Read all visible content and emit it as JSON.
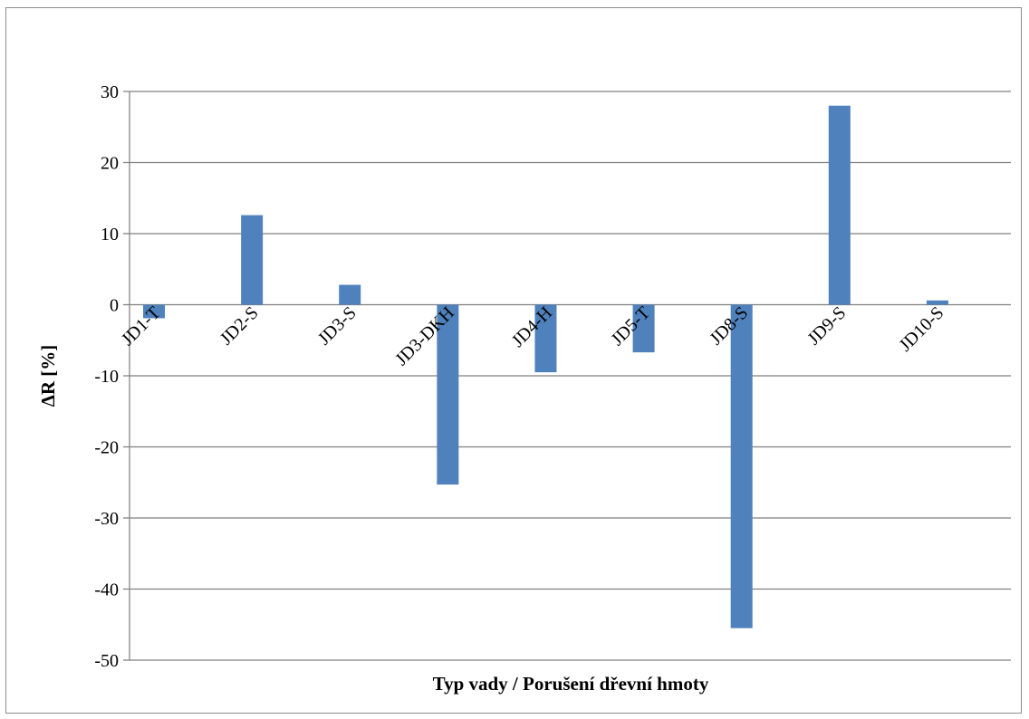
{
  "chart_data": {
    "type": "bar",
    "categories": [
      "JD1-T",
      "JD2-S",
      "JD3-S",
      "JD3-DKH",
      "JD4-H",
      "JD5-T",
      "JD8-S",
      "JD9-S",
      "JD10-S"
    ],
    "values": [
      -1.9,
      12.6,
      2.8,
      -25.3,
      -9.5,
      -6.7,
      -45.5,
      28.0,
      0.6
    ],
    "xlabel": "Typ vady / Porušení dřevní hmoty",
    "ylabel": "ΔR [%]",
    "ylim": [
      -50,
      30
    ],
    "yticks": [
      30,
      20,
      10,
      0,
      -10,
      -20,
      -30,
      -40,
      -50
    ],
    "grid": true,
    "legend": "none",
    "bar_color": "#4f81bd",
    "grid_color": "#7f7f7f"
  }
}
